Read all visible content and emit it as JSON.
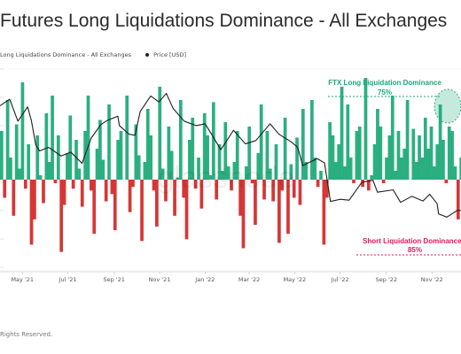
{
  "title": "Futures Long Liquidations Dominance - All Exchanges",
  "legend": {
    "series_label": "Long Liquidations Dominance - All Exchanges",
    "price_label": "Price [USD]"
  },
  "watermark": "glassnode",
  "footer": "Rights Reserved.",
  "colors": {
    "positive": "#1aa876",
    "negative": "#d32626",
    "price": "#1e1e1e",
    "long_annotation": "#1aa876",
    "short_annotation": "#e0185e"
  },
  "annotations": {
    "long": {
      "label": "FTX Long Liquidation Dominance",
      "value": "75%"
    },
    "short": {
      "label": "Short Liquidation Dominance",
      "value": "85%"
    }
  },
  "chart_data": {
    "type": "area",
    "x_tick_labels": [
      "May '21",
      "Jul '21",
      "Sep '21",
      "Nov '21",
      "Jan '22",
      "Mar '22",
      "May '22",
      "Jul '22",
      "Sep '22",
      "Nov '22"
    ],
    "x_range": [
      "2021-04-01",
      "2022-12-10"
    ],
    "baseline_pct": 50,
    "dominance_range": [
      0,
      100
    ],
    "price_scale": "log",
    "price_range_usd": [
      11000,
      80000
    ],
    "price_series": {
      "name": "Price [USD]",
      "points": [
        [
          "2021-04-01",
          58800
        ],
        [
          "2021-04-14",
          63500
        ],
        [
          "2021-04-25",
          49000
        ],
        [
          "2021-05-08",
          58000
        ],
        [
          "2021-05-13",
          49500
        ],
        [
          "2021-05-19",
          37000
        ],
        [
          "2021-05-24",
          34500
        ],
        [
          "2021-06-05",
          36000
        ],
        [
          "2021-06-22",
          32500
        ],
        [
          "2021-07-05",
          34000
        ],
        [
          "2021-07-20",
          29800
        ],
        [
          "2021-08-01",
          40000
        ],
        [
          "2021-08-14",
          47000
        ],
        [
          "2021-08-23",
          49500
        ],
        [
          "2021-09-06",
          52000
        ],
        [
          "2021-09-08",
          46500
        ],
        [
          "2021-09-21",
          42000
        ],
        [
          "2021-09-29",
          41500
        ],
        [
          "2021-10-06",
          55000
        ],
        [
          "2021-10-20",
          66000
        ],
        [
          "2021-10-31",
          61500
        ],
        [
          "2021-11-10",
          68000
        ],
        [
          "2021-11-19",
          57000
        ],
        [
          "2021-12-04",
          49000
        ],
        [
          "2021-12-20",
          46500
        ],
        [
          "2022-01-01",
          47500
        ],
        [
          "2022-01-10",
          41800
        ],
        [
          "2022-01-22",
          35000
        ],
        [
          "2022-02-08",
          44000
        ],
        [
          "2022-02-24",
          37500
        ],
        [
          "2022-03-10",
          39000
        ],
        [
          "2022-03-29",
          47500
        ],
        [
          "2022-04-10",
          42000
        ],
        [
          "2022-04-26",
          38500
        ],
        [
          "2022-05-05",
          36000
        ],
        [
          "2022-05-12",
          29000
        ],
        [
          "2022-05-31",
          31500
        ],
        [
          "2022-06-10",
          30000
        ],
        [
          "2022-06-18",
          19000
        ],
        [
          "2022-07-01",
          19500
        ],
        [
          "2022-07-13",
          19300
        ],
        [
          "2022-07-30",
          23800
        ],
        [
          "2022-08-14",
          24400
        ],
        [
          "2022-08-20",
          21200
        ],
        [
          "2022-09-10",
          21800
        ],
        [
          "2022-09-20",
          18800
        ],
        [
          "2022-10-05",
          20200
        ],
        [
          "2022-10-20",
          19100
        ],
        [
          "2022-10-29",
          20700
        ],
        [
          "2022-11-08",
          18500
        ],
        [
          "2022-11-10",
          16400
        ],
        [
          "2022-11-21",
          15800
        ],
        [
          "2022-12-05",
          17100
        ],
        [
          "2022-12-10",
          17100
        ]
      ]
    },
    "dominance_series": {
      "name": "Long Liquidations Dominance - All Exchanges",
      "unit": "%",
      "start": "2021-04-01",
      "step_days": 4,
      "values": [
        72,
        40,
        86,
        60,
        30,
        75,
        55,
        94,
        45,
        66,
        14,
        28,
        70,
        52,
        37,
        80,
        58,
        88,
        48,
        70,
        10,
        36,
        62,
        79,
        45,
        68,
        55,
        35,
        72,
        88,
        44,
        20,
        64,
        77,
        59,
        38,
        84,
        42,
        22,
        68,
        72,
        50,
        88,
        32,
        46,
        75,
        61,
        16,
        58,
        82,
        70,
        44,
        24,
        92,
        55,
        38,
        74,
        63,
        30,
        51,
        86,
        40,
        17,
        68,
        78,
        45,
        60,
        34,
        80,
        70,
        52,
        85,
        39,
        66,
        54,
        76,
        56,
        44,
        58,
        72,
        30,
        12,
        56,
        74,
        48,
        25,
        62,
        84,
        39,
        72,
        55,
        38,
        66,
        15,
        44,
        78,
        20,
        57,
        40,
        69,
        36,
        82,
        58,
        50,
        86,
        60,
        46,
        54,
        14,
        40,
        76,
        70,
        58,
        66,
        92,
        56,
        84,
        60,
        48,
        72,
        74,
        46,
        96,
        44,
        52,
        66,
        82,
        74,
        48,
        60,
        70,
        88,
        54,
        72,
        60,
        64,
        86,
        50,
        73,
        58,
        70,
        60,
        78,
        64,
        74,
        56,
        66,
        84,
        68,
        48,
        74,
        72,
        56,
        28,
        60,
        90,
        70,
        54,
        80,
        82,
        57,
        62,
        55
      ]
    }
  }
}
